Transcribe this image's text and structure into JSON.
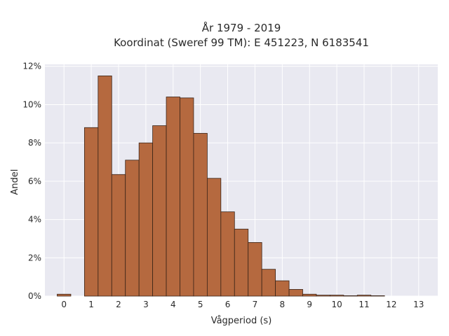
{
  "chart_data": {
    "type": "bar",
    "title_lines": [
      "År 1979 - 2019",
      "Koordinat (Sweref 99 TM): E 451223, N 6183541"
    ],
    "xlabel": "Vågperiod (s)",
    "ylabel": "Andel",
    "xlim": [
      -0.7,
      13.7
    ],
    "ylim": [
      0,
      12.1
    ],
    "x_ticks": [
      0,
      1,
      2,
      3,
      4,
      5,
      6,
      7,
      8,
      9,
      10,
      11,
      12,
      13
    ],
    "x_tick_labels": [
      "0",
      "1",
      "2",
      "3",
      "4",
      "5",
      "6",
      "7",
      "8",
      "9",
      "10",
      "11",
      "12",
      "13"
    ],
    "y_ticks": [
      0,
      2,
      4,
      6,
      8,
      10,
      12
    ],
    "y_tick_labels": [
      "0%",
      "2%",
      "4%",
      "6%",
      "8%",
      "10%",
      "12%"
    ],
    "grid": true,
    "bar_width": 0.5,
    "bar_color": "#b5693f",
    "bar_edge_color": "#3a2418",
    "background_color": "#e9e9f1",
    "bars": [
      {
        "x": 0.0,
        "value": 0.1
      },
      {
        "x": 1.0,
        "value": 8.8
      },
      {
        "x": 1.5,
        "value": 11.5
      },
      {
        "x": 2.0,
        "value": 6.35
      },
      {
        "x": 2.5,
        "value": 7.1
      },
      {
        "x": 3.0,
        "value": 8.0
      },
      {
        "x": 3.5,
        "value": 8.9
      },
      {
        "x": 4.0,
        "value": 10.4
      },
      {
        "x": 4.5,
        "value": 10.35
      },
      {
        "x": 5.0,
        "value": 8.5
      },
      {
        "x": 5.5,
        "value": 6.15
      },
      {
        "x": 6.0,
        "value": 4.4
      },
      {
        "x": 6.5,
        "value": 3.5
      },
      {
        "x": 7.0,
        "value": 2.8
      },
      {
        "x": 7.5,
        "value": 1.4
      },
      {
        "x": 8.0,
        "value": 0.8
      },
      {
        "x": 8.5,
        "value": 0.35
      },
      {
        "x": 9.0,
        "value": 0.1
      },
      {
        "x": 9.5,
        "value": 0.05
      },
      {
        "x": 10.0,
        "value": 0.05
      },
      {
        "x": 10.5,
        "value": 0.02
      },
      {
        "x": 11.0,
        "value": 0.05
      },
      {
        "x": 11.5,
        "value": 0.02
      }
    ]
  }
}
